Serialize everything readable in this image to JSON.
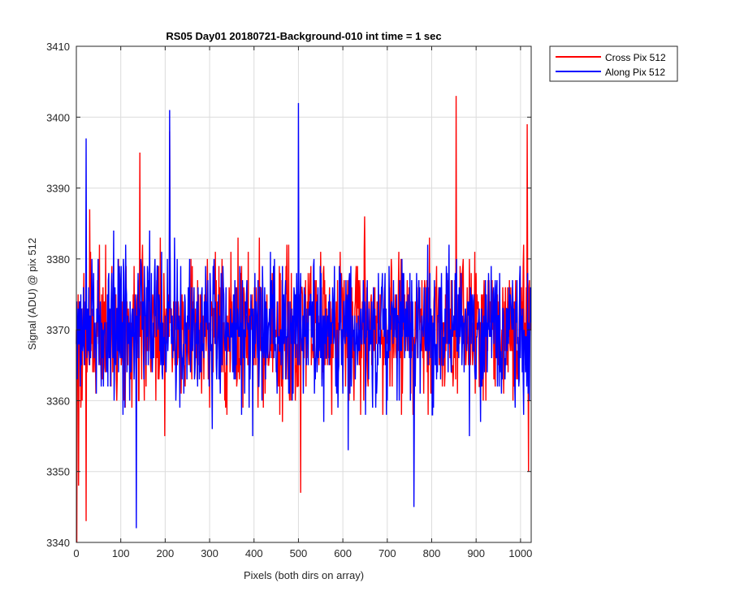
{
  "chart_data": {
    "type": "line",
    "title": "RS05 Day01 20180721-Background-010 int time = 1 sec",
    "xlabel": "Pixels (both dirs on array)",
    "ylabel": "Signal (ADU) @ pix 512",
    "xlim": [
      0,
      1024
    ],
    "ylim": [
      3340,
      3410
    ],
    "xticks": [
      0,
      100,
      200,
      300,
      400,
      500,
      600,
      700,
      800,
      900,
      1000
    ],
    "yticks": [
      3340,
      3350,
      3360,
      3370,
      3380,
      3390,
      3400,
      3410
    ],
    "grid": true,
    "legend_position": "outside top-right",
    "n_points": 1024,
    "series": [
      {
        "name": "Cross Pix 512",
        "color": "#ff0000",
        "mean": 3370,
        "min": 3340,
        "max": 3403,
        "notable_points": [
          [
            1,
            3340
          ],
          [
            5,
            3348
          ],
          [
            22,
            3343
          ],
          [
            143,
            3395
          ],
          [
            210,
            3398
          ],
          [
            505,
            3347
          ],
          [
            855,
            3403
          ],
          [
            1015,
            3399
          ],
          [
            1018,
            3350
          ]
        ]
      },
      {
        "name": "Along Pix 512",
        "color": "#0000ff",
        "mean": 3370,
        "min": 3342,
        "max": 3402,
        "notable_points": [
          [
            22,
            3397
          ],
          [
            135,
            3342
          ],
          [
            210,
            3401
          ],
          [
            500,
            3402
          ],
          [
            760,
            3345
          ],
          [
            1020,
            3360
          ]
        ]
      }
    ]
  }
}
